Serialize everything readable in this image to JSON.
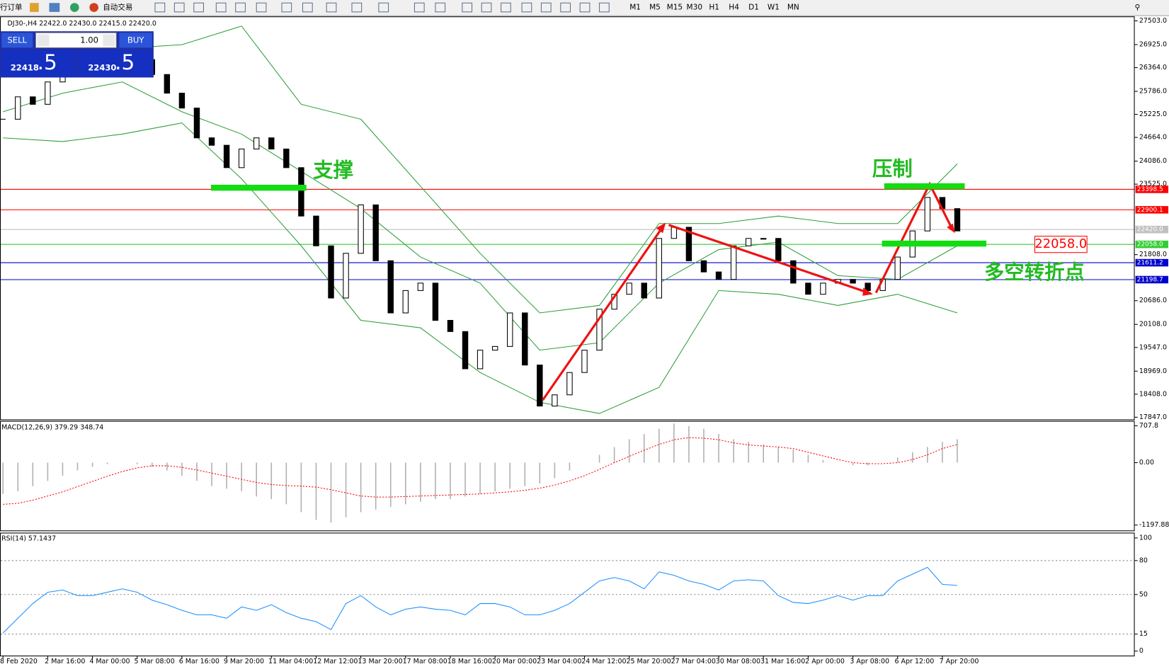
{
  "toolbar": {
    "items": [
      "行订单",
      "自动交易"
    ],
    "timeframes": [
      "M1",
      "M5",
      "M15",
      "M30",
      "H1",
      "H4",
      "D1",
      "W1",
      "MN"
    ]
  },
  "trade_panel": {
    "sell": "SELL",
    "buy": "BUY",
    "lot": "1.00",
    "bid_main": "22418",
    "bid_big": ".5",
    "ask_main": "22430",
    "ask_big": ".5"
  },
  "chart_data": [
    {
      "type": "candlestick",
      "title": "DJ30-,H4  22422.0 22430.0 22415.0 22420.0",
      "categories": [
        "8 Feb 2020",
        null,
        null,
        "2 Mar 16:00",
        null,
        null,
        "4 Mar 00:00",
        null,
        null,
        "5 Mar 08:00",
        null,
        null,
        "6 Mar 16:00",
        null,
        null,
        "9 Mar 20:00",
        null,
        null,
        "11 Mar 04:00",
        null,
        null,
        "12 Mar 12:00",
        null,
        null,
        "13 Mar 20:00",
        null,
        null,
        "17 Mar 08:00",
        null,
        null,
        "18 Mar 16:00",
        null,
        null,
        "20 Mar 00:00",
        null,
        null,
        "23 Mar 04:00",
        null,
        null,
        "24 Mar 12:00",
        null,
        null,
        "25 Mar 20:00",
        null,
        null,
        "27 Mar 04:00",
        null,
        null,
        "30 Mar 08:00",
        null,
        null,
        "31 Mar 16:00",
        null,
        null,
        "2 Apr 00:00",
        null,
        null,
        "3 Apr 08:00",
        null,
        null,
        "6 Apr 12:00",
        null,
        null,
        "7 Apr 20:00",
        null
      ],
      "values": [
        25107,
        25652,
        25470,
        26015,
        26559,
        26559,
        26287,
        26468,
        26741,
        26559,
        26196,
        25742,
        25379,
        24653,
        24472,
        23927,
        24381,
        24653,
        24381,
        23927,
        22748,
        22022,
        20751,
        21840,
        23020,
        21659,
        20388,
        20933,
        21114,
        20207,
        19934,
        19027,
        19481,
        19571,
        20388,
        19118,
        18119,
        18392,
        18936,
        19481,
        20479,
        20842,
        21114,
        20751,
        22203,
        22475,
        21659,
        21386,
        21205,
        22022,
        22203,
        22203,
        21659,
        21114,
        20842,
        21114,
        21205,
        21114,
        20933,
        21205,
        21749,
        22385,
        23201,
        22929,
        22385
      ],
      "up_color": "#ffffff",
      "down_color": "#000000",
      "ylim": [
        17793,
        27612
      ],
      "yticks": [
        {
          "value": 27503,
          "label": "27503.0"
        },
        {
          "value": 26925,
          "label": "26925.0"
        },
        {
          "value": 26364,
          "label": "26364.0"
        },
        {
          "value": 25786,
          "label": "25786.0"
        },
        {
          "value": 25225,
          "label": "25225.0"
        },
        {
          "value": 24664,
          "label": "24664.0"
        },
        {
          "value": 24086,
          "label": "24086.0"
        },
        {
          "value": 23525,
          "label": "23525.0"
        },
        {
          "value": 21808,
          "label": "21808.0"
        },
        {
          "value": 20686,
          "label": "20686.0"
        },
        {
          "value": 20108,
          "label": "20108.0"
        },
        {
          "value": 19547,
          "label": "19547.0"
        },
        {
          "value": 18969,
          "label": "18969.0"
        },
        {
          "value": 18408,
          "label": "18408.0"
        },
        {
          "value": 17847,
          "label": "17847.0"
        }
      ],
      "bands": [
        {
          "color": "#2e9e3a",
          "x": [
            0,
            4,
            8,
            12,
            16,
            20,
            24,
            28,
            32,
            36,
            40,
            44,
            48,
            52,
            56,
            60,
            64
          ],
          "values": [
            26378,
            27104,
            26831,
            26922,
            27376,
            25470,
            25107,
            23474,
            21840,
            20388,
            20570,
            22566,
            22566,
            22748,
            22566,
            22566,
            24018
          ]
        },
        {
          "color": "#2e9e3a",
          "x": [
            0,
            4,
            8,
            12,
            16,
            20,
            24,
            28,
            32,
            36,
            40,
            44,
            48,
            52,
            56,
            60,
            64
          ],
          "values": [
            25289,
            25742,
            26015,
            25289,
            24744,
            23837,
            22929,
            21749,
            21114,
            19481,
            19662,
            21114,
            21931,
            22113,
            21296,
            21205,
            22022
          ]
        },
        {
          "color": "#2e9e3a",
          "x": [
            0,
            4,
            8,
            12,
            16,
            20,
            24,
            28,
            32,
            36,
            40,
            44,
            48,
            52,
            56,
            60,
            64
          ],
          "values": [
            24653,
            24563,
            24744,
            25016,
            23655,
            22022,
            20207,
            20025,
            18936,
            18210,
            17938,
            18573,
            20933,
            20842,
            20570,
            20842,
            20388
          ]
        }
      ],
      "levels": [
        {
          "value": 23398.5,
          "label": "23398.5",
          "color": "#ff0000"
        },
        {
          "value": 22900.1,
          "label": "22900.1",
          "color": "#ff0000"
        },
        {
          "value": 22420,
          "label": "22420.0",
          "color": "#c0c0c0"
        },
        {
          "value": 22058,
          "label": "22058.0",
          "color": "#33cc33"
        },
        {
          "value": 21611.2,
          "label": "21611.2",
          "color": "#0000cc"
        },
        {
          "value": 21198.7,
          "label": "21198.7",
          "color": "#0000cc"
        }
      ],
      "callout": {
        "value": 22058,
        "label": "22058.0"
      },
      "annotations": [
        "支撑",
        "压制",
        "多空转折点"
      ]
    },
    {
      "type": "macd",
      "title": "MACD(12,26,9) 379.29 348.74",
      "series": [
        {
          "color": "#b0b0b0",
          "values": [
            -600,
            -550,
            -450,
            -350,
            -250,
            -150,
            -80,
            -30,
            0,
            -30,
            -80,
            -150,
            -250,
            -350,
            -450,
            -500,
            -550,
            -650,
            -700,
            -800,
            -950,
            -1100,
            -1150,
            -1050,
            -950,
            -900,
            -850,
            -800,
            -750,
            -700,
            -700,
            -650,
            -600,
            -550,
            -500,
            -450,
            -400,
            -300,
            -150,
            0,
            150,
            300,
            450,
            550,
            650,
            750,
            700,
            650,
            550,
            450,
            400,
            350,
            300,
            250,
            150,
            50,
            0,
            -50,
            -50,
            0,
            100,
            200,
            300,
            400,
            450
          ]
        },
        {
          "color": "#ff0000",
          "values": [
            -800,
            -780,
            -720,
            -640,
            -560,
            -460,
            -360,
            -260,
            -170,
            -100,
            -60,
            -60,
            -90,
            -140,
            -200,
            -260,
            -320,
            -380,
            -420,
            -440,
            -450,
            -470,
            -520,
            -580,
            -640,
            -660,
            -660,
            -650,
            -640,
            -630,
            -620,
            -610,
            -600,
            -580,
            -560,
            -530,
            -490,
            -430,
            -350,
            -250,
            -130,
            0,
            120,
            240,
            350,
            440,
            480,
            470,
            440,
            380,
            340,
            320,
            300,
            270,
            200,
            130,
            60,
            0,
            -20,
            -20,
            0,
            60,
            150,
            270,
            350
          ]
        }
      ],
      "ylim": [
        -1301,
        787
      ],
      "yticks": [
        707.8,
        {
          "value": 0,
          "label": "0.00"
        },
        -1197.88
      ]
    },
    {
      "type": "line",
      "title": "RSI(14) 57.1437",
      "color": "#1e90ff",
      "values": [
        16,
        29,
        42,
        52,
        54,
        49,
        49,
        52,
        55,
        52,
        45,
        41,
        36,
        32,
        32,
        29,
        39,
        36,
        41,
        34,
        29,
        26,
        19,
        42,
        49,
        39,
        32,
        37,
        39,
        37,
        36,
        32,
        42,
        42,
        39,
        32,
        32,
        36,
        42,
        52,
        62,
        65,
        62,
        55,
        70,
        67,
        62,
        59,
        54,
        62,
        63,
        62,
        49,
        43,
        42,
        45,
        49,
        45,
        49,
        49,
        62,
        68,
        74,
        59,
        58
      ],
      "ylim": [
        -4,
        104
      ],
      "yticks": [
        0,
        15,
        50,
        80,
        100
      ],
      "grid": "dashed"
    }
  ]
}
